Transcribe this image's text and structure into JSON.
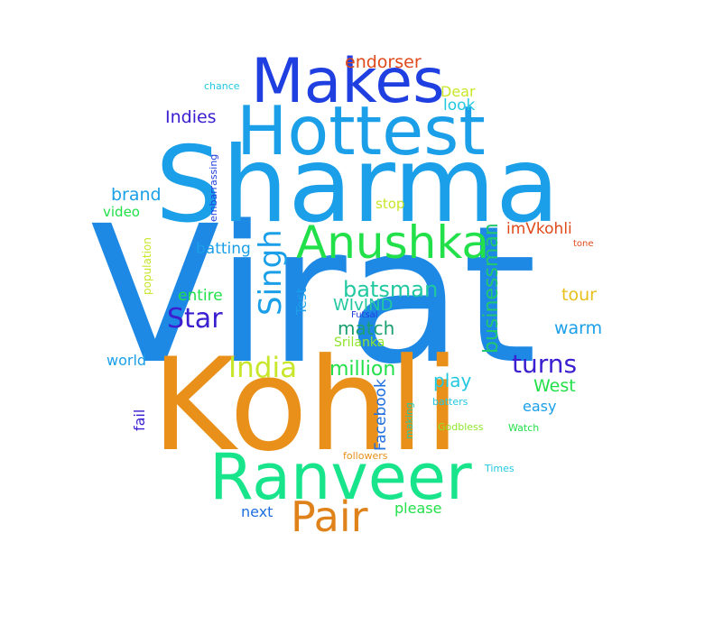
{
  "words": {
    "virat": "Virat",
    "kohli": "Kohli",
    "sharma": "Sharma",
    "hottest": "Hottest",
    "makes": "Makes",
    "ranveer": "Ranveer",
    "anushka": "Anushka",
    "pair": "Pair",
    "singh": "Singh",
    "star": "Star",
    "india": "India",
    "turns": "turns",
    "batsman": "batsman",
    "million": "million",
    "businessman": "businessman",
    "endorser": "endorser",
    "indies": "Indies",
    "brand": "brand",
    "match": "match",
    "wivind": "WIvIND",
    "play": "play",
    "west": "West",
    "tour": "tour",
    "warm": "warm",
    "look": "look",
    "dear": "Dear",
    "imvkohli": "imVkohli",
    "batting": "batting",
    "entire": "entire",
    "facebook": "Facebook",
    "test": "Test",
    "stop": "stop",
    "world": "world",
    "next": "next",
    "please": "please",
    "easy": "easy",
    "srilanka": "Srilanka",
    "video": "video",
    "fail": "fail",
    "population": "population",
    "embarrassing": "embarrassing",
    "chance": "chance",
    "tone": "tone",
    "futsal": "Futsal",
    "making": "making",
    "batters": "batters",
    "godbless": "Godbless",
    "watch": "Watch",
    "followers": "followers",
    "times": "Times"
  },
  "colors": {
    "blue": "#1e88e5",
    "sky": "#1a9fe8",
    "royal": "#1f3fe0",
    "indigo": "#3a20d0",
    "orange": "#e8901a",
    "dark_orange": "#e0821a",
    "mint": "#18e48c",
    "green": "#22e04a",
    "lime": "#c8e62a",
    "red": "#e04a1a",
    "cyan": "#22c8e0"
  }
}
